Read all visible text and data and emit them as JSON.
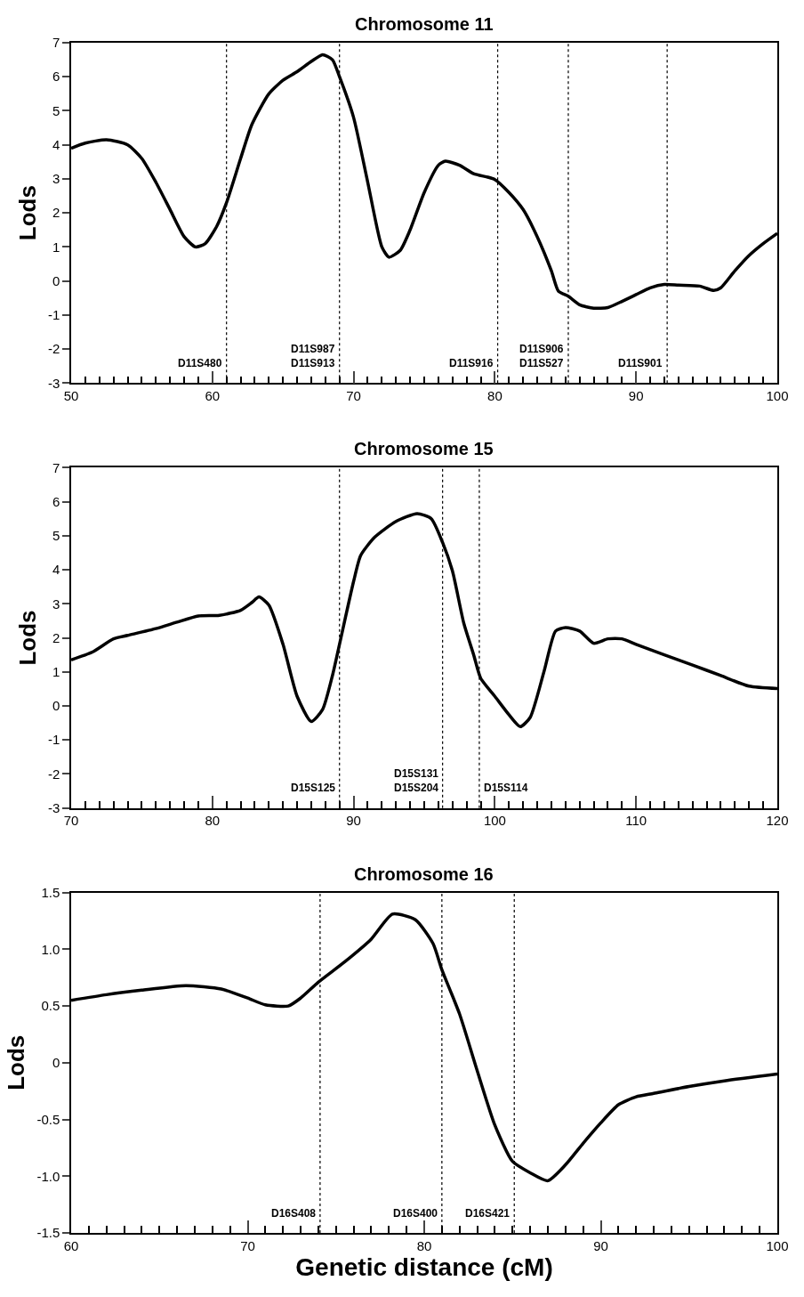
{
  "chart_data": [
    {
      "type": "line",
      "title": "Chromosome 11",
      "ylabel": "Lods",
      "color": "#000000",
      "x": [
        50,
        51,
        52.5,
        54,
        55,
        56,
        57,
        58,
        58.8,
        59.5,
        60.3,
        61,
        62,
        62.8,
        64,
        65,
        66,
        67,
        67.8,
        68.5,
        69,
        70,
        71,
        72,
        72.5,
        73.3,
        74,
        75,
        76,
        76.5,
        77.5,
        78.5,
        79.5,
        80,
        81,
        82,
        83,
        84,
        84.5,
        85.2,
        86,
        87,
        88,
        89,
        90,
        91,
        92,
        93,
        94.5,
        95.5,
        96,
        97,
        98,
        99,
        100
      ],
      "values": [
        3.9,
        4.05,
        4.15,
        4.0,
        3.6,
        2.9,
        2.1,
        1.3,
        1.0,
        1.1,
        1.6,
        2.3,
        3.6,
        4.6,
        5.5,
        5.9,
        6.15,
        6.45,
        6.65,
        6.5,
        6.0,
        4.8,
        2.9,
        1.0,
        0.7,
        0.9,
        1.5,
        2.6,
        3.4,
        3.52,
        3.4,
        3.15,
        3.05,
        2.98,
        2.6,
        2.1,
        1.3,
        0.3,
        -0.3,
        -0.45,
        -0.7,
        -0.8,
        -0.78,
        -0.6,
        -0.4,
        -0.2,
        -0.1,
        -0.12,
        -0.15,
        -0.28,
        -0.2,
        0.3,
        0.75,
        1.1,
        1.4
      ],
      "xlim": [
        50,
        100
      ],
      "ylim": [
        -3,
        7
      ],
      "xticks": [
        50,
        {
          "value": 51,
          "label": null
        },
        {
          "value": 52,
          "label": null
        },
        {
          "value": 53,
          "label": null
        },
        {
          "value": 54,
          "label": null
        },
        {
          "value": 55,
          "label": null
        },
        {
          "value": 56,
          "label": null
        },
        {
          "value": 57,
          "label": null
        },
        {
          "value": 58,
          "label": null
        },
        {
          "value": 59,
          "label": null
        },
        60,
        {
          "value": 61,
          "label": null
        },
        {
          "value": 62,
          "label": null
        },
        {
          "value": 63,
          "label": null
        },
        {
          "value": 64,
          "label": null
        },
        {
          "value": 65,
          "label": null
        },
        {
          "value": 66,
          "label": null
        },
        {
          "value": 67,
          "label": null
        },
        {
          "value": 68,
          "label": null
        },
        {
          "value": 69,
          "label": null
        },
        70,
        {
          "value": 71,
          "label": null
        },
        {
          "value": 72,
          "label": null
        },
        {
          "value": 73,
          "label": null
        },
        {
          "value": 74,
          "label": null
        },
        {
          "value": 75,
          "label": null
        },
        {
          "value": 76,
          "label": null
        },
        {
          "value": 77,
          "label": null
        },
        {
          "value": 78,
          "label": null
        },
        {
          "value": 79,
          "label": null
        },
        80,
        {
          "value": 81,
          "label": null
        },
        {
          "value": 82,
          "label": null
        },
        {
          "value": 83,
          "label": null
        },
        {
          "value": 84,
          "label": null
        },
        {
          "value": 85,
          "label": null
        },
        {
          "value": 86,
          "label": null
        },
        {
          "value": 87,
          "label": null
        },
        {
          "value": 88,
          "label": null
        },
        {
          "value": 89,
          "label": null
        },
        90,
        {
          "value": 91,
          "label": null
        },
        {
          "value": 92,
          "label": null
        },
        {
          "value": 93,
          "label": null
        },
        {
          "value": 94,
          "label": null
        },
        {
          "value": 95,
          "label": null
        },
        {
          "value": 96,
          "label": null
        },
        {
          "value": 97,
          "label": null
        },
        {
          "value": 98,
          "label": null
        },
        {
          "value": 99,
          "label": null
        },
        100
      ],
      "yticks": [
        -3,
        -2,
        -1,
        0,
        1,
        2,
        3,
        4,
        5,
        6,
        7
      ],
      "ref_lines": [
        {
          "axis": "x",
          "value": 61,
          "label": "D11S480",
          "line_style": "dotted"
        },
        {
          "axis": "x",
          "value": 69,
          "label": "D11S987\nD11S913",
          "line_style": "dotted"
        },
        {
          "axis": "x",
          "value": 80.2,
          "label": "D11S916",
          "line_style": "dotted"
        },
        {
          "axis": "x",
          "value": 85.2,
          "label": "D11S906\nD11S527",
          "line_style": "dotted"
        },
        {
          "axis": "x",
          "value": 92.2,
          "label": "D11S901",
          "line_style": "dotted"
        }
      ]
    },
    {
      "type": "line",
      "title": "Chromosome 15",
      "ylabel": "Lods",
      "color": "#000000",
      "x": [
        70,
        71.5,
        73,
        74,
        76,
        77.5,
        79,
        80.5,
        82,
        82.8,
        83.3,
        84,
        85,
        86,
        87,
        87.8,
        88.5,
        89,
        90,
        90.5,
        91.5,
        93,
        94.5,
        95.5,
        96.3,
        97,
        97.8,
        98.5,
        99,
        100,
        101,
        101.8,
        102.5,
        103.5,
        104.3,
        105,
        106,
        107,
        108,
        109,
        110,
        112,
        114,
        116,
        118,
        120
      ],
      "values": [
        1.35,
        1.58,
        1.97,
        2.07,
        2.27,
        2.46,
        2.64,
        2.66,
        2.81,
        3.04,
        3.2,
        2.96,
        1.81,
        0.28,
        -0.46,
        -0.11,
        0.89,
        1.81,
        3.66,
        4.42,
        4.96,
        5.42,
        5.65,
        5.5,
        4.8,
        3.96,
        2.43,
        1.5,
        0.81,
        0.28,
        -0.26,
        -0.61,
        -0.34,
        1.04,
        2.2,
        2.3,
        2.2,
        1.84,
        1.97,
        1.97,
        1.81,
        1.5,
        1.2,
        0.89,
        0.58,
        0.51
      ],
      "xlim": [
        70,
        120
      ],
      "ylim": [
        -3,
        7
      ],
      "xticks": [
        70,
        {
          "value": 71,
          "label": null
        },
        {
          "value": 72,
          "label": null
        },
        {
          "value": 73,
          "label": null
        },
        {
          "value": 74,
          "label": null
        },
        {
          "value": 75,
          "label": null
        },
        {
          "value": 76,
          "label": null
        },
        {
          "value": 77,
          "label": null
        },
        {
          "value": 78,
          "label": null
        },
        {
          "value": 79,
          "label": null
        },
        80,
        {
          "value": 81,
          "label": null
        },
        {
          "value": 82,
          "label": null
        },
        {
          "value": 83,
          "label": null
        },
        {
          "value": 84,
          "label": null
        },
        {
          "value": 85,
          "label": null
        },
        {
          "value": 86,
          "label": null
        },
        {
          "value": 87,
          "label": null
        },
        {
          "value": 88,
          "label": null
        },
        {
          "value": 89,
          "label": null
        },
        90,
        {
          "value": 91,
          "label": null
        },
        {
          "value": 92,
          "label": null
        },
        {
          "value": 93,
          "label": null
        },
        {
          "value": 94,
          "label": null
        },
        {
          "value": 95,
          "label": null
        },
        {
          "value": 96,
          "label": null
        },
        {
          "value": 97,
          "label": null
        },
        {
          "value": 98,
          "label": null
        },
        {
          "value": 99,
          "label": null
        },
        100,
        {
          "value": 101,
          "label": null
        },
        {
          "value": 102,
          "label": null
        },
        {
          "value": 103,
          "label": null
        },
        {
          "value": 104,
          "label": null
        },
        {
          "value": 105,
          "label": null
        },
        {
          "value": 106,
          "label": null
        },
        {
          "value": 107,
          "label": null
        },
        {
          "value": 108,
          "label": null
        },
        {
          "value": 109,
          "label": null
        },
        110,
        {
          "value": 111,
          "label": null
        },
        {
          "value": 112,
          "label": null
        },
        {
          "value": 113,
          "label": null
        },
        {
          "value": 114,
          "label": null
        },
        {
          "value": 115,
          "label": null
        },
        {
          "value": 116,
          "label": null
        },
        {
          "value": 117,
          "label": null
        },
        {
          "value": 118,
          "label": null
        },
        {
          "value": 119,
          "label": null
        },
        120
      ],
      "yticks": [
        -3,
        -2,
        -1,
        0,
        1,
        2,
        3,
        4,
        5,
        6,
        7
      ],
      "ref_lines": [
        {
          "axis": "x",
          "value": 89,
          "label": "D15S125",
          "line_style": "dotted"
        },
        {
          "axis": "x",
          "value": 96.3,
          "label": "D15S131\nD15S204",
          "line_style": "dotted"
        },
        {
          "axis": "x",
          "value": 98.9,
          "label": "D15S114",
          "line_style": "dotted"
        }
      ]
    },
    {
      "type": "line",
      "title": "Chromosome 16",
      "ylabel": "Lods",
      "xlabel": "Genetic distance (cM)",
      "color": "#000000",
      "x": [
        60,
        62,
        64,
        66.5,
        68.5,
        70,
        71,
        72.3,
        73,
        74,
        75.5,
        77,
        78.2,
        79.5,
        80.5,
        81,
        82,
        83,
        84,
        85,
        86,
        87,
        88,
        89,
        90,
        91,
        92,
        93,
        95,
        97,
        100
      ],
      "values": [
        0.55,
        0.6,
        0.64,
        0.68,
        0.65,
        0.57,
        0.51,
        0.5,
        0.57,
        0.71,
        0.89,
        1.09,
        1.31,
        1.26,
        1.05,
        0.82,
        0.43,
        -0.07,
        -0.55,
        -0.87,
        -0.97,
        -1.04,
        -0.9,
        -0.71,
        -0.53,
        -0.37,
        -0.3,
        -0.27,
        -0.21,
        -0.16,
        -0.1
      ],
      "xlim": [
        60,
        100
      ],
      "ylim": [
        -1.5,
        1.5
      ],
      "xticks": [
        60,
        {
          "value": 61,
          "label": null
        },
        {
          "value": 62,
          "label": null
        },
        {
          "value": 63,
          "label": null
        },
        {
          "value": 64,
          "label": null
        },
        {
          "value": 65,
          "label": null
        },
        {
          "value": 66,
          "label": null
        },
        {
          "value": 67,
          "label": null
        },
        {
          "value": 68,
          "label": null
        },
        {
          "value": 69,
          "label": null
        },
        70,
        {
          "value": 71,
          "label": null
        },
        {
          "value": 72,
          "label": null
        },
        {
          "value": 73,
          "label": null
        },
        {
          "value": 74,
          "label": null
        },
        {
          "value": 75,
          "label": null
        },
        {
          "value": 76,
          "label": null
        },
        {
          "value": 77,
          "label": null
        },
        {
          "value": 78,
          "label": null
        },
        {
          "value": 79,
          "label": null
        },
        80,
        {
          "value": 81,
          "label": null
        },
        {
          "value": 82,
          "label": null
        },
        {
          "value": 83,
          "label": null
        },
        {
          "value": 84,
          "label": null
        },
        {
          "value": 85,
          "label": null
        },
        {
          "value": 86,
          "label": null
        },
        {
          "value": 87,
          "label": null
        },
        {
          "value": 88,
          "label": null
        },
        {
          "value": 89,
          "label": null
        },
        90,
        {
          "value": 91,
          "label": null
        },
        {
          "value": 92,
          "label": null
        },
        {
          "value": 93,
          "label": null
        },
        {
          "value": 94,
          "label": null
        },
        {
          "value": 95,
          "label": null
        },
        {
          "value": 96,
          "label": null
        },
        {
          "value": 97,
          "label": null
        },
        {
          "value": 98,
          "label": null
        },
        {
          "value": 99,
          "label": null
        },
        100
      ],
      "yticks": [
        {
          "value": -1.5,
          "label": "-1.5"
        },
        {
          "value": -1,
          "label": "-1.0"
        },
        {
          "value": -0.5,
          "label": "-0.5"
        },
        0,
        {
          "value": 0.5,
          "label": "0.5"
        },
        {
          "value": 1,
          "label": "1.0"
        },
        {
          "value": 1.5,
          "label": "1.5"
        }
      ],
      "ref_lines": [
        {
          "axis": "x",
          "value": 74.1,
          "label": "D16S408",
          "line_style": "dotted"
        },
        {
          "axis": "x",
          "value": 81,
          "label": "D16S400",
          "line_style": "dotted"
        },
        {
          "axis": "x",
          "value": 85.1,
          "label": "D16S421",
          "line_style": "dotted"
        }
      ]
    }
  ]
}
